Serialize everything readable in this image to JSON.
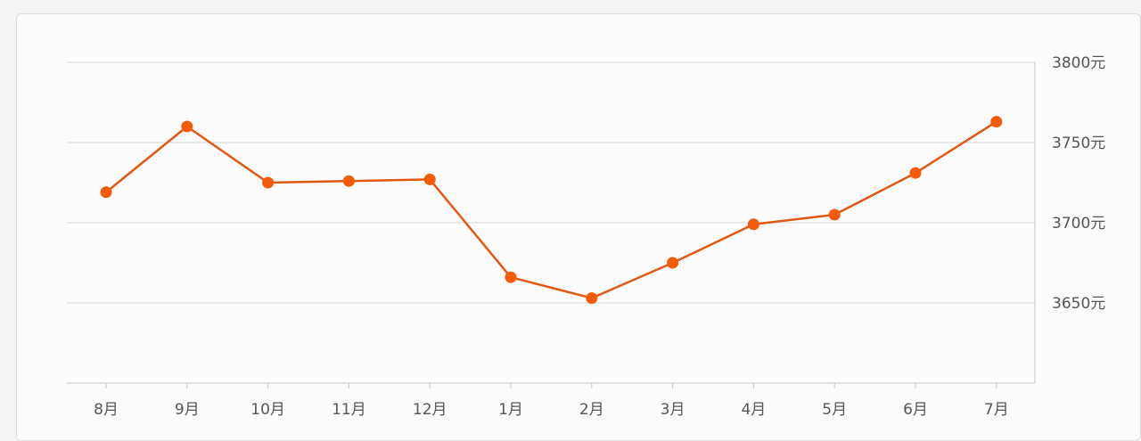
{
  "chart_data": {
    "type": "line",
    "categories": [
      "8月",
      "9月",
      "10月",
      "11月",
      "12月",
      "1月",
      "2月",
      "3月",
      "4月",
      "5月",
      "6月",
      "7月"
    ],
    "series": [
      {
        "values": [
          3719,
          3760,
          3725,
          3726,
          3727,
          3666,
          3653,
          3675,
          3699,
          3705,
          3731,
          3763
        ]
      }
    ],
    "y_ticks": [
      {
        "value": 3650,
        "label": "3650元"
      },
      {
        "value": 3700,
        "label": "3700元"
      },
      {
        "value": 3750,
        "label": "3750元"
      },
      {
        "value": 3800,
        "label": "3800元"
      }
    ],
    "ylim": [
      3600,
      3800
    ],
    "y_axis_side": "right",
    "grid": true,
    "colors": {
      "line": "#e2580f",
      "marker": "#f45b06",
      "grid": "#d6d6d6",
      "axis": "#c8c8c8",
      "text": "#555555"
    }
  }
}
